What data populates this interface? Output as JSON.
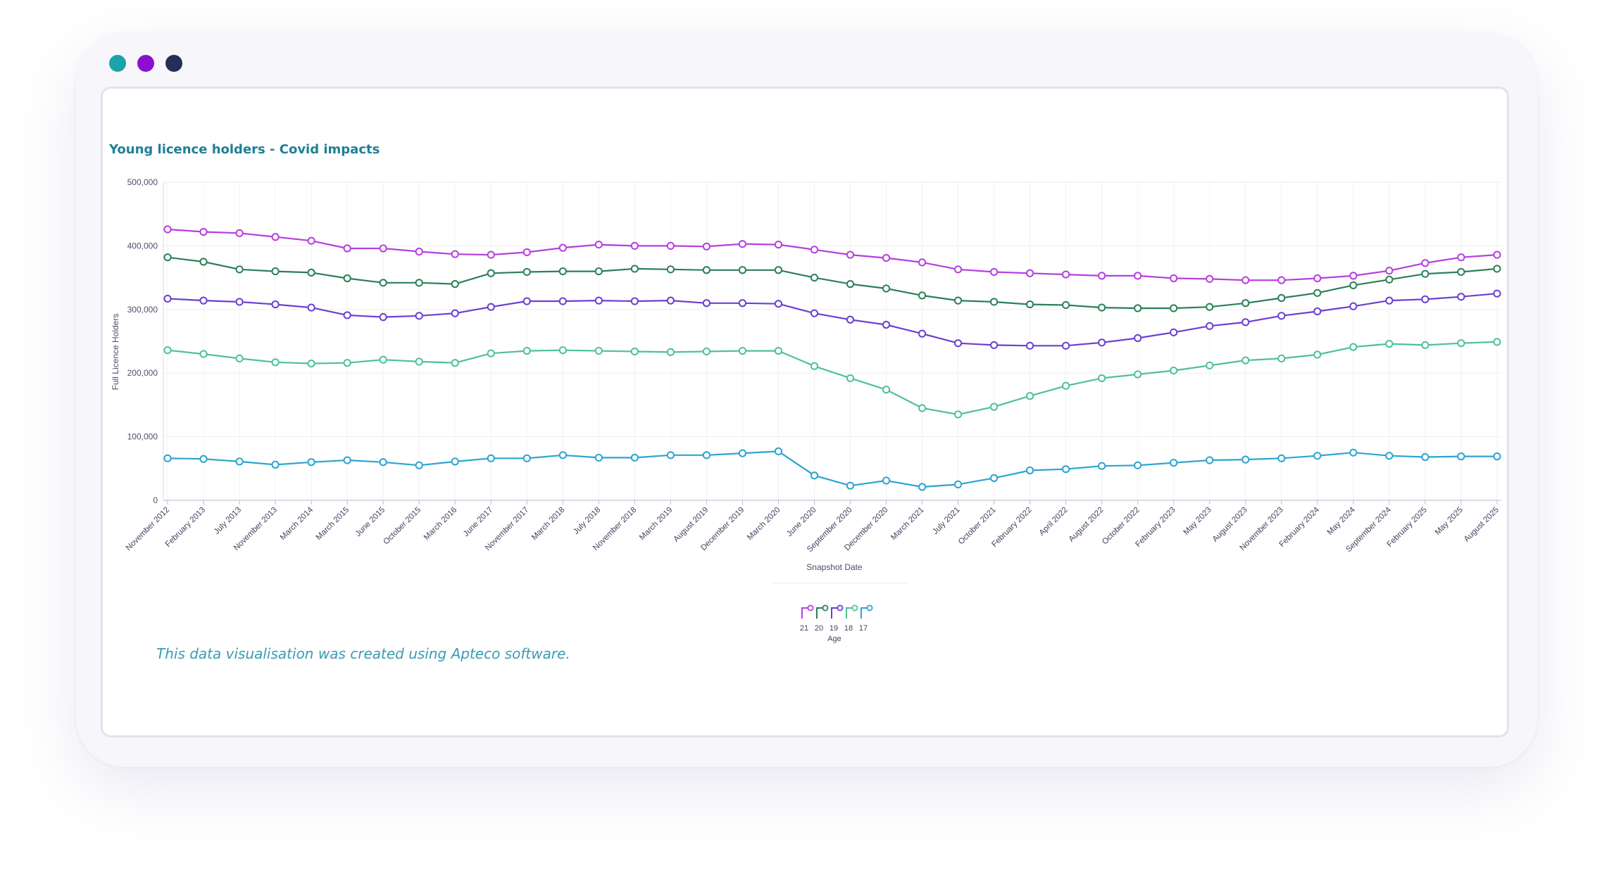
{
  "window": {
    "controls": [
      {
        "name": "window-dot-teal",
        "color": "#1aa3a8"
      },
      {
        "name": "window-dot-purple",
        "color": "#8a10cf"
      },
      {
        "name": "window-dot-navy",
        "color": "#272c59"
      }
    ]
  },
  "footer_note": "This data visualisation was created using Apteco software.",
  "chart_data": {
    "type": "line",
    "title": "Young licence holders - Covid impacts",
    "xlabel": "Snapshot Date",
    "ylabel": "Full Licence Holders",
    "ylim": [
      0,
      500000
    ],
    "yticks": [
      0,
      100000,
      200000,
      300000,
      400000,
      500000
    ],
    "ytick_labels": [
      "0",
      "100,000",
      "200,000",
      "300,000",
      "400,000",
      "500,000"
    ],
    "grid": true,
    "legend": {
      "title": "Age",
      "position": "bottom-center"
    },
    "x": [
      "November 2012",
      "February 2013",
      "July 2013",
      "November 2013",
      "March 2014",
      "March 2015",
      "June 2015",
      "October 2015",
      "March 2016",
      "June 2017",
      "November 2017",
      "March 2018",
      "July 2018",
      "November 2018",
      "March 2019",
      "August 2019",
      "December 2019",
      "March 2020",
      "June 2020",
      "September 2020",
      "December 2020",
      "March 2021",
      "July 2021",
      "October 2021",
      "February 2022",
      "April 2022",
      "August 2022",
      "October 2022",
      "February 2023",
      "May 2023",
      "August 2023",
      "November 2023",
      "February 2024",
      "May 2024",
      "September 2024",
      "February 2025",
      "May 2025",
      "August 2025"
    ],
    "series": [
      {
        "name": "21",
        "color": "#b63ee0",
        "values": [
          426000,
          422000,
          420000,
          414000,
          408000,
          396000,
          396000,
          391000,
          387000,
          386000,
          390000,
          397000,
          402000,
          400000,
          400000,
          399000,
          403000,
          402000,
          394000,
          386000,
          381000,
          374000,
          363000,
          359000,
          357000,
          355000,
          353000,
          353000,
          349000,
          348000,
          346000,
          346000,
          349000,
          353000,
          361000,
          373000,
          382000,
          386000
        ]
      },
      {
        "name": "20",
        "color": "#2b8058",
        "values": [
          382000,
          375000,
          363000,
          360000,
          358000,
          349000,
          342000,
          342000,
          340000,
          357000,
          359000,
          360000,
          360000,
          364000,
          363000,
          362000,
          362000,
          362000,
          350000,
          340000,
          333000,
          322000,
          314000,
          312000,
          308000,
          307000,
          303000,
          302000,
          302000,
          304000,
          310000,
          318000,
          326000,
          338000,
          347000,
          356000,
          359000,
          364000
        ]
      },
      {
        "name": "19",
        "color": "#6a3fd3",
        "values": [
          317000,
          314000,
          312000,
          308000,
          303000,
          291000,
          288000,
          290000,
          294000,
          304000,
          313000,
          313000,
          314000,
          313000,
          314000,
          310000,
          310000,
          309000,
          294000,
          284000,
          276000,
          262000,
          247000,
          244000,
          243000,
          243000,
          248000,
          255000,
          264000,
          274000,
          280000,
          290000,
          297000,
          305000,
          314000,
          316000,
          320000,
          325000
        ]
      },
      {
        "name": "18",
        "color": "#4fc293",
        "values": [
          236000,
          230000,
          223000,
          217000,
          215000,
          216000,
          221000,
          218000,
          216000,
          231000,
          235000,
          236000,
          235000,
          234000,
          233000,
          234000,
          235000,
          235000,
          211000,
          192000,
          174000,
          145000,
          135000,
          147000,
          164000,
          180000,
          192000,
          198000,
          204000,
          212000,
          220000,
          223000,
          229000,
          241000,
          246000,
          244000,
          247000,
          249000
        ]
      },
      {
        "name": "17",
        "color": "#2ba5d0",
        "values": [
          66000,
          65000,
          61000,
          56000,
          60000,
          63000,
          60000,
          55000,
          61000,
          66000,
          66000,
          71000,
          67000,
          67000,
          71000,
          71000,
          74000,
          77000,
          39000,
          23000,
          31000,
          21000,
          25000,
          35000,
          47000,
          49000,
          54000,
          55000,
          59000,
          63000,
          64000,
          66000,
          70000,
          75000,
          70000,
          68000,
          69000,
          69000
        ]
      }
    ]
  }
}
